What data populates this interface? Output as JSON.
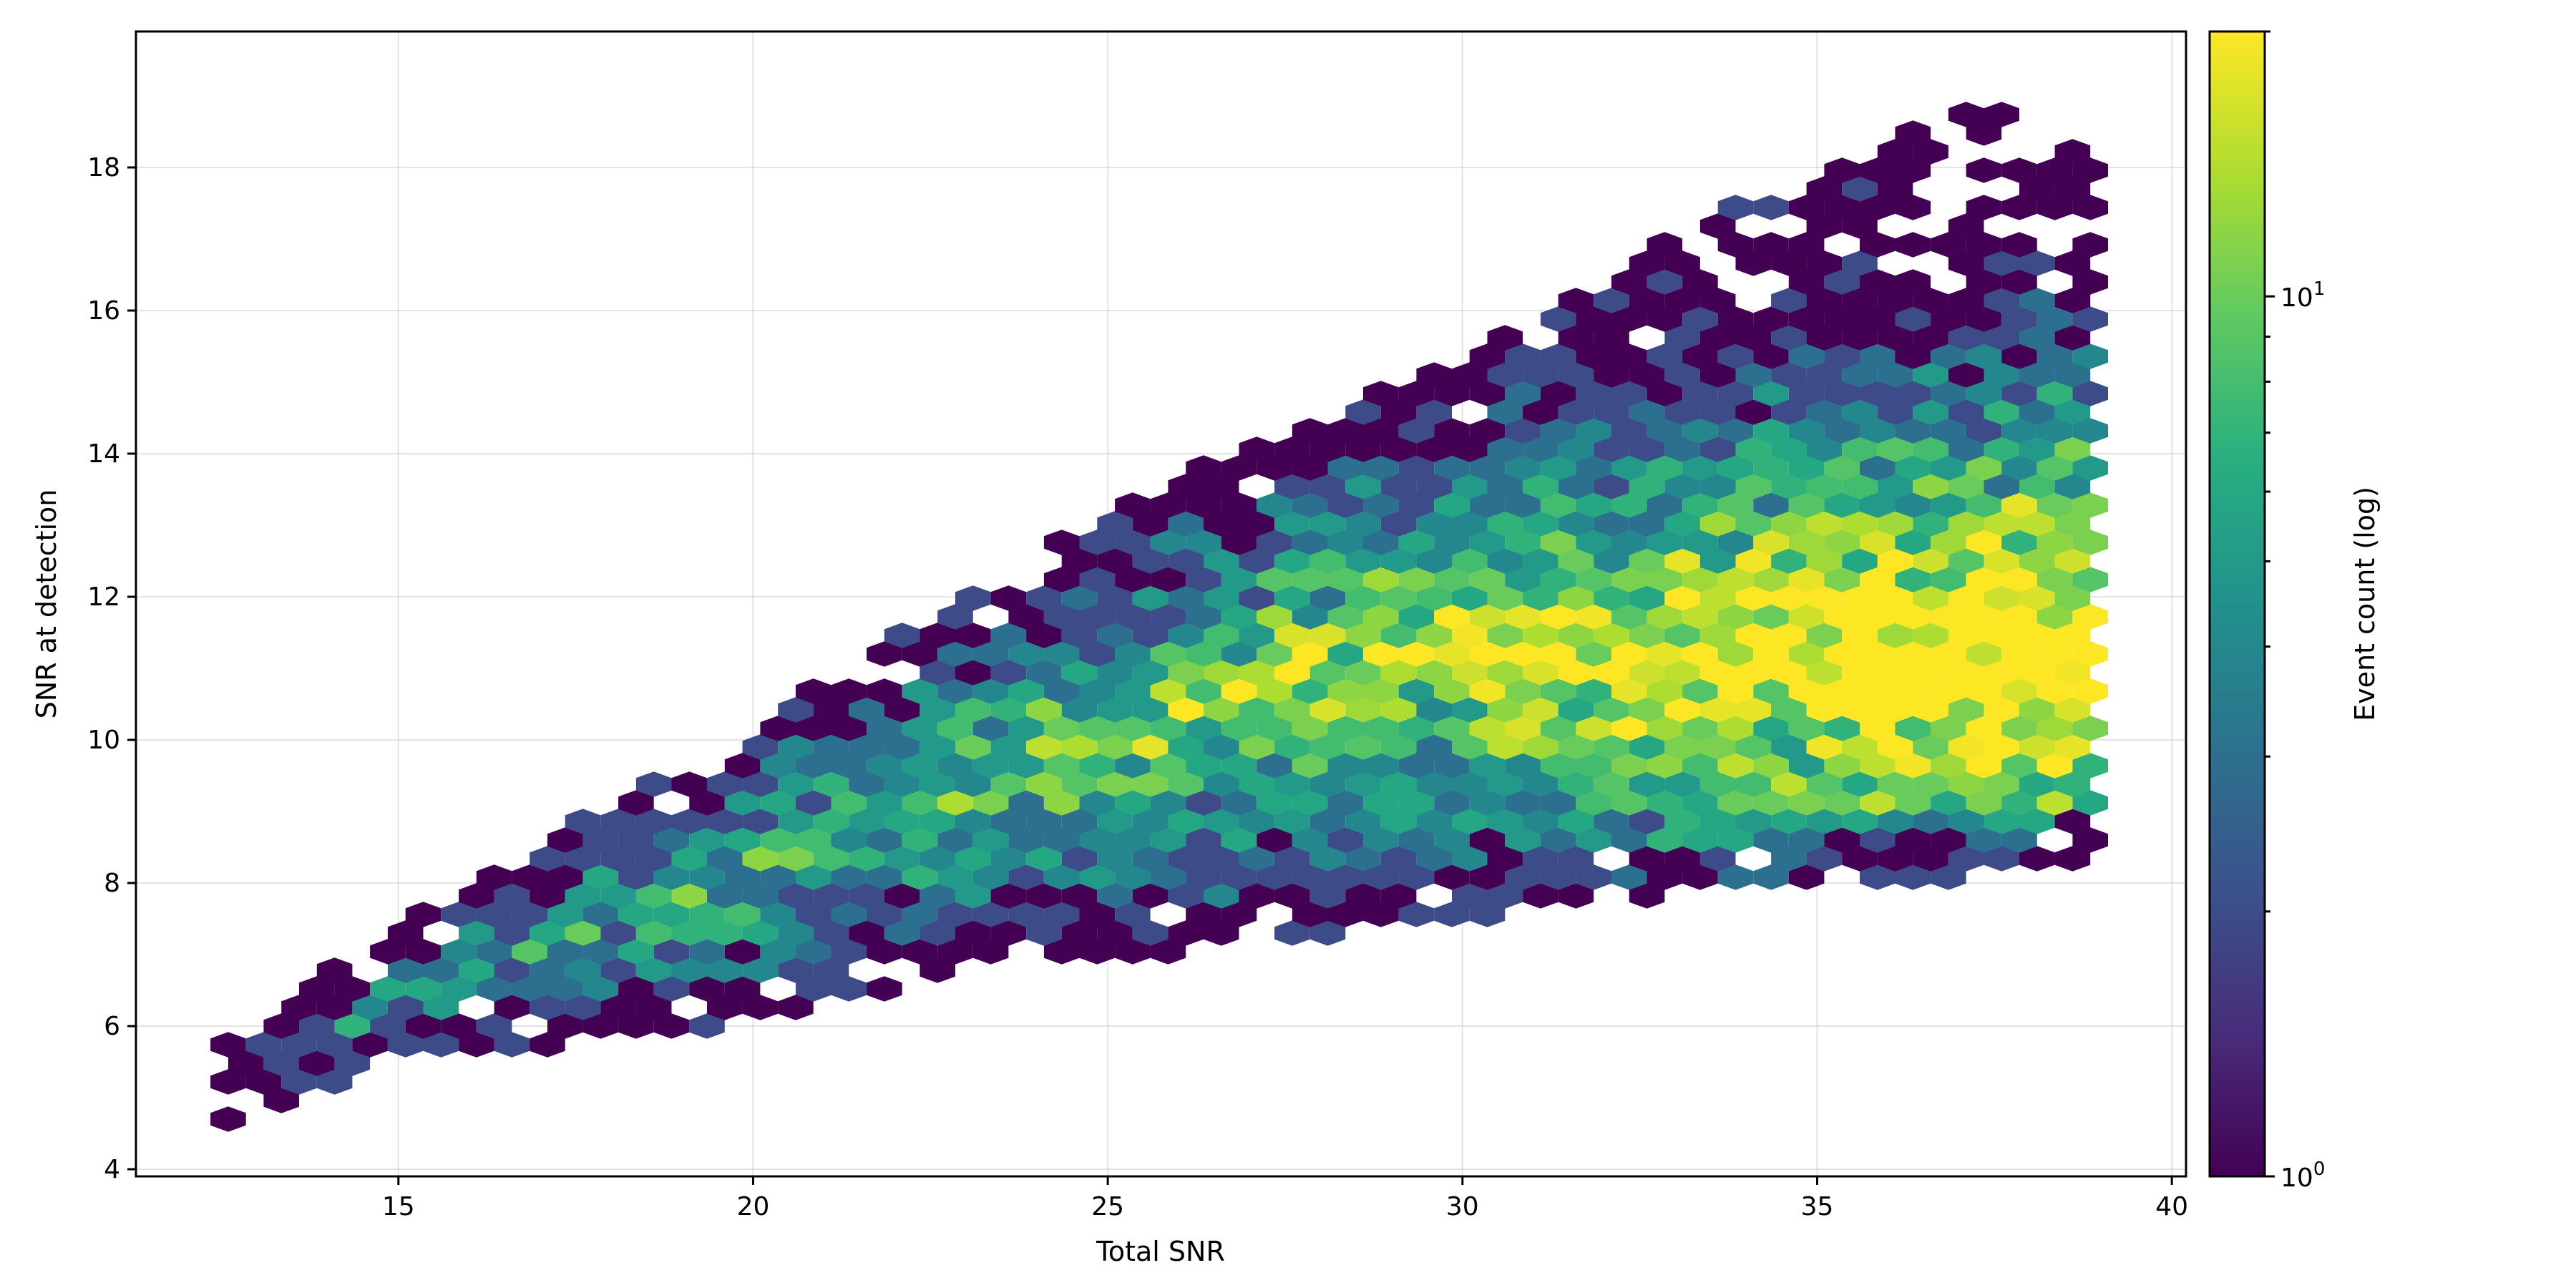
{
  "chart_data": {
    "type": "hexbin",
    "xlabel": "Total SNR",
    "ylabel": "SNR at detection",
    "xlim": [
      11.3,
      40.2
    ],
    "ylim": [
      3.9,
      19.9
    ],
    "x_ticks": [
      15,
      20,
      25,
      30,
      35,
      40
    ],
    "y_ticks": [
      4,
      6,
      8,
      10,
      12,
      14,
      16,
      18
    ],
    "x_tick_labels": [
      "15",
      "20",
      "25",
      "30",
      "35",
      "40"
    ],
    "y_tick_labels": [
      "4",
      "6",
      "8",
      "10",
      "12",
      "14",
      "16",
      "18"
    ],
    "grid": true,
    "colormap": "viridis",
    "colorbar": {
      "label": "Event count (log)",
      "scale": "log",
      "range": [
        1,
        20
      ],
      "tick_labels": [
        {
          "value": 1,
          "base": "10",
          "exp": "0"
        },
        {
          "value": 10,
          "base": "10",
          "exp": "1"
        }
      ]
    },
    "hex_bins": {
      "x_min": 12.6,
      "x_max": 38.9,
      "y_min": 4.7,
      "y_max": 19.2,
      "region_lower": [
        [
          12.6,
          4.7
        ],
        [
          15.2,
          5.5
        ],
        [
          20.0,
          6.0
        ],
        [
          23.0,
          6.8
        ],
        [
          26.0,
          7.0
        ],
        [
          30.0,
          7.5
        ],
        [
          34.0,
          7.9
        ],
        [
          38.9,
          8.2
        ]
      ],
      "region_upper": [
        [
          12.6,
          5.8
        ],
        [
          15.2,
          7.5
        ],
        [
          20.0,
          10.3
        ],
        [
          23.0,
          12.0
        ],
        [
          26.0,
          13.7
        ],
        [
          30.0,
          15.3
        ],
        [
          33.5,
          17.3
        ],
        [
          36.5,
          18.6
        ],
        [
          38.9,
          19.2
        ]
      ],
      "core_upper": 11.2,
      "core_lower_offset": 1.2,
      "count_peak": 20
    }
  }
}
